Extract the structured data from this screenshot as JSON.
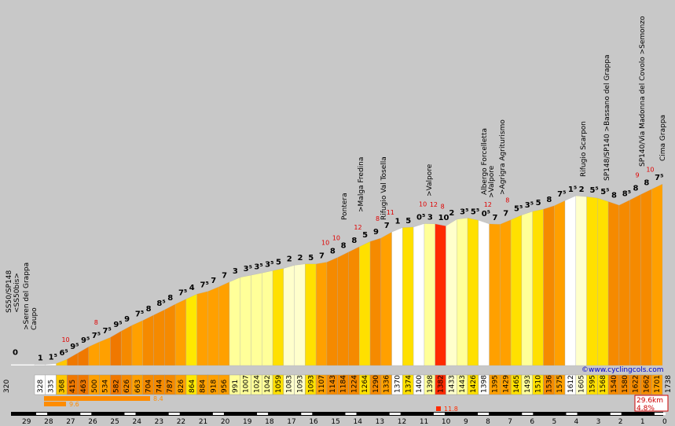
{
  "chart_data": {
    "type": "bar",
    "subtype": "climb-elevation-profile",
    "source_credit": "©www.cyclingcols.com",
    "total_distance": "29.6km",
    "average_gradient": "4.8%",
    "start_altitude": "320",
    "end_altitude": "1738",
    "km_markers_to_summit": [
      29,
      28,
      27,
      26,
      25,
      24,
      23,
      22,
      21,
      20,
      19,
      18,
      17,
      16,
      15,
      14,
      13,
      12,
      11,
      10,
      9,
      8,
      7,
      6,
      5,
      4,
      3,
      2,
      1,
      0
    ],
    "max_gradient_bars": [
      {
        "label": "8.4",
        "color": "#ff8c00"
      },
      {
        "label": "9.6",
        "color": "#ff8c00"
      },
      {
        "label": "11.8",
        "color": "#ff2a00"
      }
    ],
    "segments": [
      {
        "altitude": "328",
        "gradient": "1",
        "color": "#ffffff"
      },
      {
        "altitude": "335",
        "gradient": "1⁵",
        "color": "#ffffff"
      },
      {
        "altitude": "368",
        "gradient": "6⁵",
        "color": "#ffc800"
      },
      {
        "altitude": "415",
        "gradient": "9⁵",
        "color": "#f07800"
      },
      {
        "altitude": "463",
        "gradient": "9⁵",
        "color": "#f07800"
      },
      {
        "altitude": "500",
        "gradient": "7⁵",
        "color": "#ffa000"
      },
      {
        "altitude": "534",
        "gradient": "7⁵",
        "color": "#ffa000"
      },
      {
        "altitude": "582",
        "gradient": "9⁵",
        "color": "#f07800"
      },
      {
        "altitude": "626",
        "gradient": "9",
        "color": "#f58a00"
      },
      {
        "altitude": "663",
        "gradient": "7⁵",
        "color": "#ffa000"
      },
      {
        "altitude": "704",
        "gradient": "8",
        "color": "#f58a00"
      },
      {
        "altitude": "744",
        "gradient": "8⁵",
        "color": "#f58a00"
      },
      {
        "altitude": "787",
        "gradient": "8",
        "color": "#f58a00"
      },
      {
        "altitude": "826",
        "gradient": "7⁵",
        "color": "#ffa000"
      },
      {
        "altitude": "864",
        "gradient": "4",
        "color": "#ffe800"
      },
      {
        "altitude": "884",
        "gradient": "7⁵",
        "color": "#ffa000"
      },
      {
        "altitude": "918",
        "gradient": "7",
        "color": "#ffa000"
      },
      {
        "altitude": "956",
        "gradient": "7",
        "color": "#ffa000"
      },
      {
        "altitude": "991",
        "gradient": "3",
        "color": "#ffff99"
      },
      {
        "altitude": "1007",
        "gradient": "3⁵",
        "color": "#ffff99"
      },
      {
        "altitude": "1024",
        "gradient": "3⁵",
        "color": "#ffff99"
      },
      {
        "altitude": "1042",
        "gradient": "3⁵",
        "color": "#ffff99"
      },
      {
        "altitude": "1059",
        "gradient": "5",
        "color": "#ffe000"
      },
      {
        "altitude": "1083",
        "gradient": "2",
        "color": "#ffffcc"
      },
      {
        "altitude": "1093",
        "gradient": "2",
        "color": "#ffffcc"
      },
      {
        "altitude": "1093",
        "gradient": "5",
        "color": "#ffe000"
      },
      {
        "altitude": "1107",
        "gradient": "7",
        "color": "#ffa000"
      },
      {
        "altitude": "1143",
        "gradient": "8",
        "color": "#f58a00"
      },
      {
        "altitude": "1184",
        "gradient": "8",
        "color": "#f58a00"
      },
      {
        "altitude": "1224",
        "gradient": "8",
        "color": "#f58a00"
      },
      {
        "altitude": "1264",
        "gradient": "5",
        "color": "#ffe000"
      },
      {
        "altitude": "1290",
        "gradient": "9",
        "color": "#f58a00"
      },
      {
        "altitude": "1336",
        "gradient": "7",
        "color": "#ffa000"
      },
      {
        "altitude": "1370",
        "gradient": "1",
        "color": "#ffffff"
      },
      {
        "altitude": "1374",
        "gradient": "5",
        "color": "#ffe000"
      },
      {
        "altitude": "1400",
        "gradient": "0⁵",
        "color": "#ffffff"
      },
      {
        "altitude": "1398",
        "gradient": "3",
        "color": "#ffff99"
      },
      {
        "altitude": "1382",
        "gradient": "10",
        "color": "#ff2a00"
      },
      {
        "altitude": "1433",
        "gradient": "2",
        "color": "#ffffcc"
      },
      {
        "altitude": "1443",
        "gradient": "3⁵",
        "color": "#ffff99"
      },
      {
        "altitude": "1426",
        "gradient": "5⁵",
        "color": "#ffe000"
      },
      {
        "altitude": "1398",
        "gradient": "0⁵",
        "color": "#ffffff"
      },
      {
        "altitude": "1395",
        "gradient": "7",
        "color": "#ffa000"
      },
      {
        "altitude": "1429",
        "gradient": "7",
        "color": "#ffa000"
      },
      {
        "altitude": "1465",
        "gradient": "5⁵",
        "color": "#ffe000"
      },
      {
        "altitude": "1493",
        "gradient": "3⁵",
        "color": "#ffff99"
      },
      {
        "altitude": "1510",
        "gradient": "5",
        "color": "#ffe000"
      },
      {
        "altitude": "1536",
        "gradient": "8",
        "color": "#f58a00"
      },
      {
        "altitude": "1575",
        "gradient": "7⁵",
        "color": "#ffa000"
      },
      {
        "altitude": "1612",
        "gradient": "1⁵",
        "color": "#ffffff"
      },
      {
        "altitude": "1605",
        "gradient": "2",
        "color": "#ffffcc"
      },
      {
        "altitude": "1595",
        "gradient": "5⁵",
        "color": "#ffe000"
      },
      {
        "altitude": "1568",
        "gradient": "5⁵",
        "color": "#ffe000"
      },
      {
        "altitude": "1540",
        "gradient": "8",
        "color": "#f58a00"
      },
      {
        "altitude": "1580",
        "gradient": "8⁵",
        "color": "#f58a00"
      },
      {
        "altitude": "1622",
        "gradient": "8",
        "color": "#f58a00"
      },
      {
        "altitude": "1662",
        "gradient": "8",
        "color": "#f58a00"
      },
      {
        "altitude": "1701",
        "gradient": "7⁵",
        "color": "#ffa000"
      }
    ],
    "max_segment_gradients": [
      "10",
      "10",
      "8",
      "10",
      "12",
      "8",
      "11",
      "10",
      "12",
      "8",
      "12",
      "8",
      "9",
      "10"
    ],
    "waypoints": [
      "SS50/SP148",
      "<SS50bis>",
      ">Seren del Grappa",
      "Caupo",
      "Pontera",
      ">Malga Fredina",
      "Rifugio Val Tosella",
      ">Valpore",
      "Albergo Forcelletta",
      ">Valpore",
      ">Agrigra Agriturismo",
      "Rifugio Scarpon",
      "SP148/SP140 >Bassano del Grappa",
      "SP140/Via Madonna del Covolo >Semonzo",
      "Cima Grappa"
    ]
  }
}
